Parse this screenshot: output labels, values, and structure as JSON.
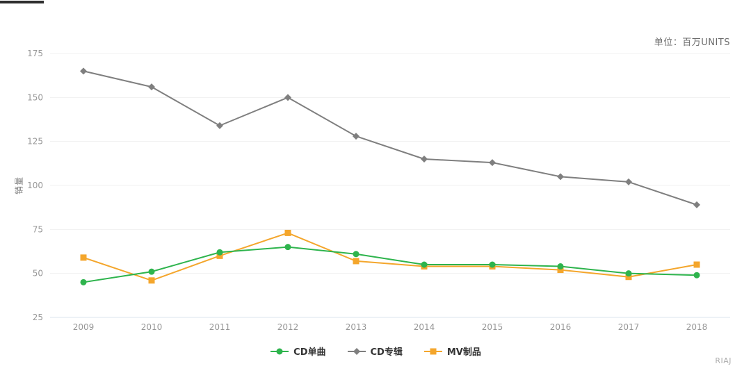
{
  "top_right_unit_note": "单位：百万UNITS",
  "watermark": "RIAJ",
  "chart_data": {
    "type": "line",
    "title": "",
    "xlabel": "",
    "ylabel": "销量",
    "unit_label": "单位：百万UNITS",
    "watermark": "RIAJ",
    "categories": [
      "2009",
      "2010",
      "2011",
      "2012",
      "2013",
      "2014",
      "2015",
      "2016",
      "2017",
      "2018"
    ],
    "y_ticks": [
      25,
      50,
      75,
      100,
      125,
      150,
      175
    ],
    "ylim": [
      25,
      175
    ],
    "grid": true,
    "legend_position": "bottom",
    "series": [
      {
        "name": "CD单曲",
        "color": "#2eb44d",
        "marker": "circle",
        "values": [
          45,
          51,
          62,
          65,
          61,
          55,
          55,
          54,
          50,
          49
        ]
      },
      {
        "name": "CD专辑",
        "color": "#7f7f7f",
        "marker": "diamond",
        "values": [
          165,
          156,
          134,
          150,
          128,
          115,
          113,
          105,
          102,
          89
        ]
      },
      {
        "name": "MV制品",
        "color": "#f4a62c",
        "marker": "square",
        "values": [
          59,
          46,
          60,
          73,
          57,
          54,
          54,
          52,
          48,
          55
        ]
      }
    ]
  }
}
